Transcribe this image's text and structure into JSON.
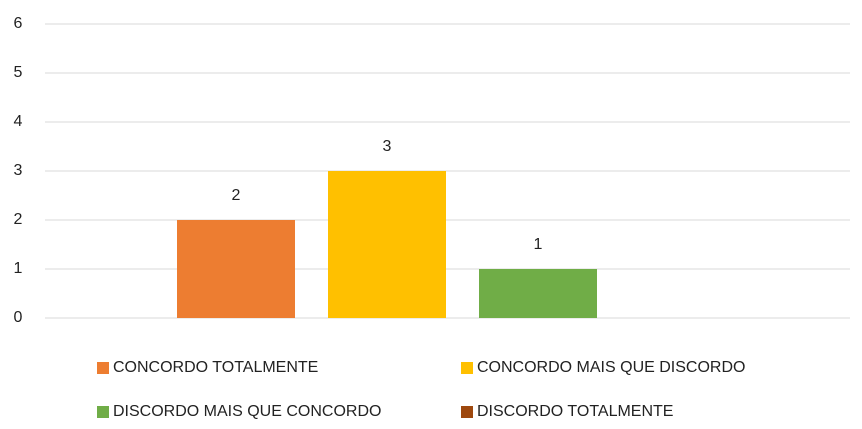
{
  "chart_data": {
    "type": "bar",
    "categories": [
      null
    ],
    "series": [
      {
        "name": "CONCORDO TOTALMENTE",
        "color": "#ED7D31",
        "values": [
          2
        ]
      },
      {
        "name": "CONCORDO MAIS QUE DISCORDO",
        "color": "#FFC000",
        "values": [
          3
        ]
      },
      {
        "name": "DISCORDO MAIS QUE CONCORDO",
        "color": "#70AD47",
        "values": [
          1
        ]
      },
      {
        "name": "DISCORDO TOTALMENTE",
        "color": "#9E480E",
        "values": [
          null
        ]
      }
    ],
    "ylim": [
      0,
      6
    ],
    "yticks": [
      0,
      1,
      2,
      3,
      4,
      5,
      6
    ],
    "grid": true,
    "legend": "bottom"
  }
}
